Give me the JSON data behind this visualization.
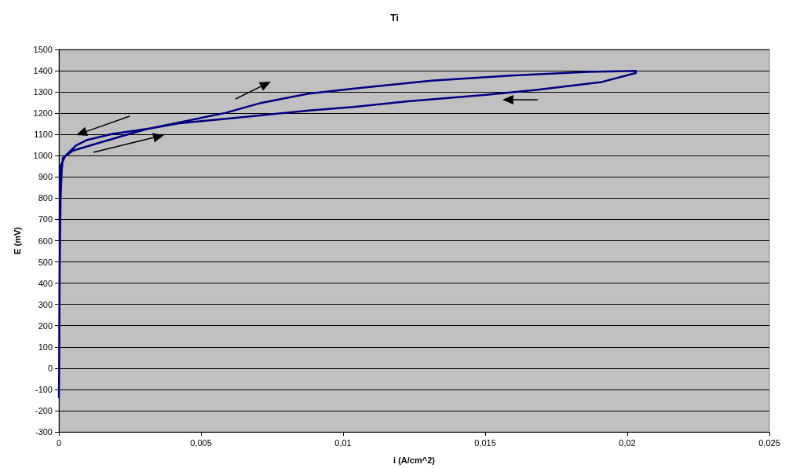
{
  "chart_data": {
    "type": "line",
    "title": "Ti",
    "xlabel": "i (A/cm^2)",
    "ylabel": "E (mV)",
    "series": [
      {
        "color": "#000080",
        "x": [
          0,
          1e-05,
          3e-05,
          6e-05,
          0.0001,
          0.00014,
          0.0005,
          0.00143,
          0.00235,
          0.00318,
          0.00585,
          0.00713,
          0.00879,
          0.0104,
          0.0131,
          0.0159,
          0.01865,
          0.0203,
          0.0203,
          0.0191,
          0.0168,
          0.01496,
          0.0122,
          0.01036,
          0.00879,
          0.00603,
          0.00419,
          0.00318,
          0.00189,
          0.00097,
          0.0006,
          0.00023,
          5e-05,
          3e-05
        ],
        "values": [
          -140,
          0,
          500,
          800,
          930,
          989,
          1024,
          1061,
          1097,
          1128,
          1201,
          1249,
          1292,
          1316,
          1353,
          1377,
          1395,
          1399,
          1389,
          1347,
          1310,
          1286,
          1255,
          1229,
          1213,
          1176,
          1152,
          1128,
          1103,
          1073,
          1048,
          1000,
          950,
          600
        ]
      }
    ],
    "xlim": [
      0,
      0.025
    ],
    "xticks": [
      0,
      {
        "value": 0.005,
        "label": "0,005"
      },
      {
        "value": 0.01,
        "label": "0,01"
      },
      {
        "value": 0.015,
        "label": "0,015"
      },
      {
        "value": 0.02,
        "label": "0,02"
      },
      {
        "value": 0.025,
        "label": "0,025"
      }
    ],
    "ylim": [
      -300,
      1500
    ],
    "yticks": [
      -300,
      -200,
      -100,
      0,
      100,
      200,
      300,
      400,
      500,
      600,
      700,
      800,
      900,
      1000,
      1100,
      1200,
      1300,
      1400,
      1500
    ],
    "grid": "y",
    "marker": "none",
    "line_style": "solid"
  }
}
